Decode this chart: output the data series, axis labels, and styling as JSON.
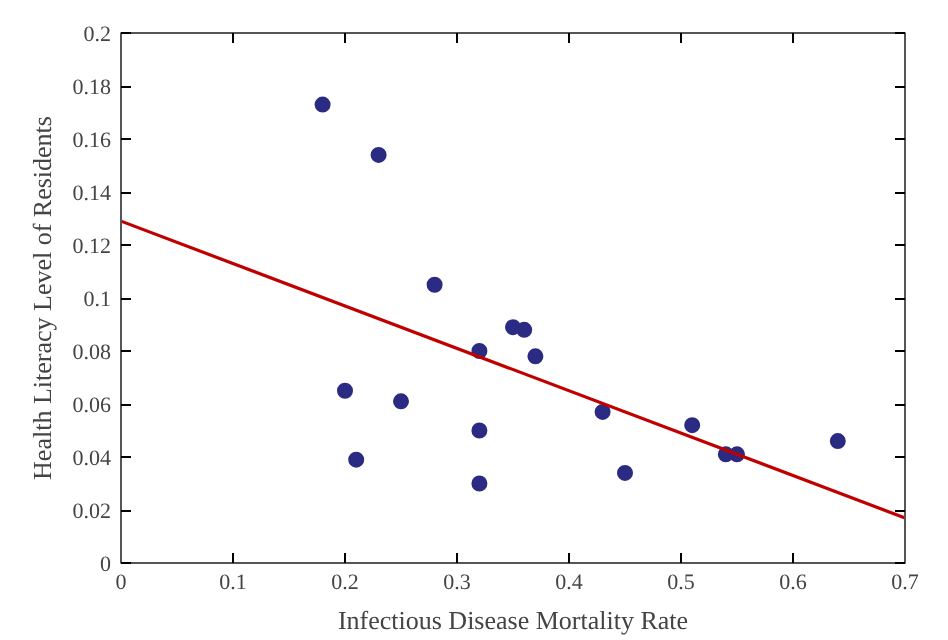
{
  "chart_data": {
    "type": "scatter",
    "xlabel": "Infectious Disease Mortality Rate",
    "ylabel": "Health Literacy Level of Residents",
    "xlim": [
      0,
      0.7
    ],
    "ylim": [
      0,
      0.2
    ],
    "xticks": [
      0,
      0.1,
      0.2,
      0.3,
      0.4,
      0.5,
      0.6,
      0.7
    ],
    "yticks": [
      0,
      0.02,
      0.04,
      0.06,
      0.08,
      0.1,
      0.12,
      0.14,
      0.16,
      0.18,
      0.2
    ],
    "grid": false,
    "series": [
      {
        "marker": "circle",
        "color": "#2b2b83",
        "x": [
          0.18,
          0.23,
          0.2,
          0.21,
          0.25,
          0.28,
          0.32,
          0.32,
          0.32,
          0.35,
          0.36,
          0.37,
          0.43,
          0.45,
          0.51,
          0.54,
          0.55,
          0.64
        ],
        "values": [
          0.173,
          0.154,
          0.065,
          0.039,
          0.061,
          0.105,
          0.08,
          0.05,
          0.03,
          0.089,
          0.088,
          0.078,
          0.057,
          0.034,
          0.052,
          0.041,
          0.041,
          0.046
        ]
      },
      {
        "type": "line",
        "color": "#c00000",
        "x": [
          0,
          0.7
        ],
        "values": [
          0.129,
          0.017
        ]
      }
    ]
  }
}
